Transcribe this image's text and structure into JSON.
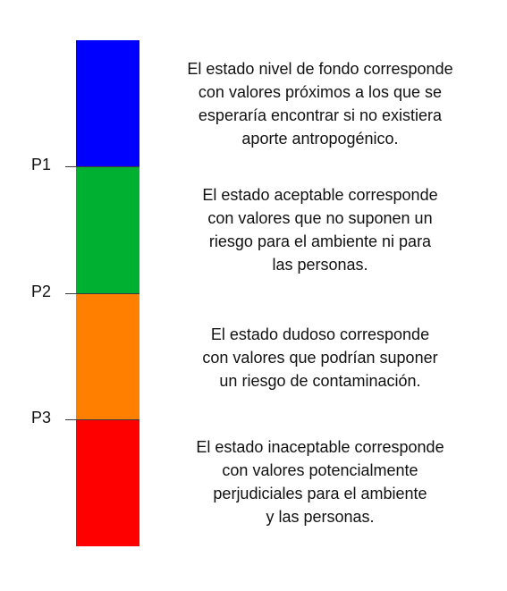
{
  "states": [
    {
      "name": "fondo",
      "color": "#0000ff",
      "lines": [
        "El estado nivel de fondo corresponde",
        "con valores próximos a los que se",
        "esperaría encontrar si no existiera",
        "aporte antropogénico."
      ]
    },
    {
      "name": "aceptable",
      "color": "#00b030",
      "lines": [
        "El estado aceptable corresponde",
        "con valores que no suponen un",
        "riesgo para el ambiente ni para",
        "las personas."
      ]
    },
    {
      "name": "dudoso",
      "color": "#ff8000",
      "lines": [
        "El estado dudoso corresponde",
        "con valores que podrían suponer",
        "un riesgo de contaminación."
      ]
    },
    {
      "name": "inaceptable",
      "color": "#ff0000",
      "lines": [
        "El estado inaceptable corresponde",
        "con valores potencialmente",
        "perjudiciales para el ambiente",
        "y las personas."
      ]
    }
  ],
  "thresholds": [
    "P1",
    "P2",
    "P3"
  ]
}
